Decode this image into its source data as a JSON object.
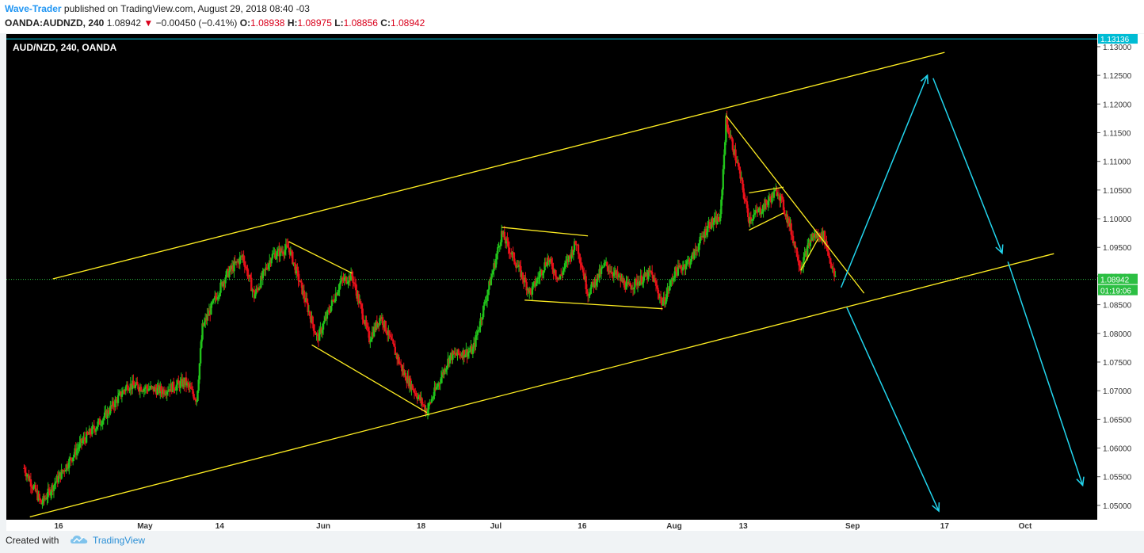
{
  "header": {
    "author": "Wave-Trader",
    "published_text": " published on TradingView.com, August 29, 2018 08:40 -03",
    "symbol": "OANDA:AUDNZD, 240",
    "last_price": "1.08942",
    "change_arrow": "▼",
    "change": "−0.00450 (−0.41%)",
    "open_label": "O:",
    "open": "1.08938",
    "high_label": "H:",
    "high": "1.08975",
    "low_label": "L:",
    "low": "1.08856",
    "close_label": "C:",
    "close": "1.08942"
  },
  "chart_data": {
    "type": "candlestick",
    "title": "AUD/NZD, 240, OANDA",
    "ylim": [
      1.0475,
      1.1322
    ],
    "y_ticks": [
      "1.13000",
      "1.12500",
      "1.12000",
      "1.11500",
      "1.11000",
      "1.10500",
      "1.10000",
      "1.09500",
      "1.09000",
      "1.08500",
      "1.08000",
      "1.07500",
      "1.07000",
      "1.06500",
      "1.06000",
      "1.05500",
      "1.05000"
    ],
    "x_ticks": [
      "16",
      "May",
      "14",
      "Jun",
      "18",
      "Jul",
      "16",
      "Aug",
      "13",
      "Sep",
      "17",
      "Oct"
    ],
    "price_badge_top": "1.13136",
    "price_badge_last": "1.08942",
    "countdown": "01:19:06",
    "current_price": 1.08942,
    "grid": false,
    "colors": {
      "up": "#21c21a",
      "down": "#e8101a",
      "trendline": "#ffee22",
      "projection": "#22d5ee",
      "current_price_line": "#2cbf43",
      "top_line": "#00bcd4"
    },
    "path_points": [
      {
        "date": "2018-04-10",
        "price": 1.0565
      },
      {
        "date": "2018-04-13",
        "price": 1.0503
      },
      {
        "date": "2018-04-20",
        "price": 1.061
      },
      {
        "date": "2018-04-24",
        "price": 1.0655
      },
      {
        "date": "2018-04-28",
        "price": 1.071
      },
      {
        "date": "2018-05-04",
        "price": 1.07
      },
      {
        "date": "2018-05-08",
        "price": 1.0715
      },
      {
        "date": "2018-05-10",
        "price": 1.0685
      },
      {
        "date": "2018-05-11",
        "price": 1.081
      },
      {
        "date": "2018-05-15",
        "price": 1.09
      },
      {
        "date": "2018-05-18",
        "price": 1.0935
      },
      {
        "date": "2018-05-20",
        "price": 1.0865
      },
      {
        "date": "2018-05-23",
        "price": 1.0935
      },
      {
        "date": "2018-05-26",
        "price": 1.095
      },
      {
        "date": "2018-05-31",
        "price": 1.079
      },
      {
        "date": "2018-06-04",
        "price": 1.089
      },
      {
        "date": "2018-06-06",
        "price": 1.09
      },
      {
        "date": "2018-06-09",
        "price": 1.079
      },
      {
        "date": "2018-06-11",
        "price": 1.083
      },
      {
        "date": "2018-06-15",
        "price": 1.073
      },
      {
        "date": "2018-06-19",
        "price": 1.0665
      },
      {
        "date": "2018-06-23",
        "price": 1.076
      },
      {
        "date": "2018-06-27",
        "price": 1.077
      },
      {
        "date": "2018-07-01",
        "price": 1.093
      },
      {
        "date": "2018-07-02",
        "price": 1.0975
      },
      {
        "date": "2018-07-07",
        "price": 1.087
      },
      {
        "date": "2018-07-10",
        "price": 1.093
      },
      {
        "date": "2018-07-12",
        "price": 1.0895
      },
      {
        "date": "2018-07-15",
        "price": 1.096
      },
      {
        "date": "2018-07-17",
        "price": 1.087
      },
      {
        "date": "2018-07-20",
        "price": 1.092
      },
      {
        "date": "2018-07-24",
        "price": 1.088
      },
      {
        "date": "2018-07-28",
        "price": 1.0905
      },
      {
        "date": "2018-07-30",
        "price": 1.085
      },
      {
        "date": "2018-08-01",
        "price": 1.0905
      },
      {
        "date": "2018-08-04",
        "price": 1.093
      },
      {
        "date": "2018-08-07",
        "price": 1.099
      },
      {
        "date": "2018-08-09",
        "price": 1.1
      },
      {
        "date": "2018-08-10",
        "price": 1.117
      },
      {
        "date": "2018-08-12",
        "price": 1.1095
      },
      {
        "date": "2018-08-14",
        "price": 1.1
      },
      {
        "date": "2018-08-16",
        "price": 1.1015
      },
      {
        "date": "2018-08-19",
        "price": 1.105
      },
      {
        "date": "2018-08-21",
        "price": 1.099
      },
      {
        "date": "2018-08-23",
        "price": 1.0915
      },
      {
        "date": "2018-08-25",
        "price": 1.097
      },
      {
        "date": "2018-08-27",
        "price": 1.097
      },
      {
        "date": "2018-08-29",
        "price": 1.0894
      }
    ],
    "drawings": {
      "channel_upper": [
        {
          "date": "2018-04-15",
          "price": 1.0895
        },
        {
          "date": "2018-09-17",
          "price": 1.129
        }
      ],
      "channel_lower": [
        {
          "date": "2018-04-11",
          "price": 1.048
        },
        {
          "date": "2018-10-06",
          "price": 1.0939
        }
      ],
      "lines": [
        [
          {
            "date": "2018-05-26",
            "price": 1.096
          },
          {
            "date": "2018-06-06",
            "price": 1.0905
          }
        ],
        [
          {
            "date": "2018-05-30",
            "price": 1.078
          },
          {
            "date": "2018-06-19",
            "price": 1.0662
          }
        ],
        [
          {
            "date": "2018-07-02",
            "price": 1.0985
          },
          {
            "date": "2018-07-17",
            "price": 1.097
          }
        ],
        [
          {
            "date": "2018-07-06",
            "price": 1.0858
          },
          {
            "date": "2018-07-30",
            "price": 1.0843
          }
        ],
        [
          {
            "date": "2018-08-10",
            "price": 1.118
          },
          {
            "date": "2018-09-03",
            "price": 1.087
          }
        ],
        [
          {
            "date": "2018-08-14",
            "price": 1.1045
          },
          {
            "date": "2018-08-20",
            "price": 1.1055
          }
        ],
        [
          {
            "date": "2018-08-14",
            "price": 1.098
          },
          {
            "date": "2018-08-20",
            "price": 1.101
          }
        ],
        [
          {
            "date": "2018-08-23",
            "price": 1.091
          },
          {
            "date": "2018-08-26",
            "price": 1.0965
          }
        ]
      ],
      "projections": [
        {
          "from": {
            "date": "2018-08-30",
            "price": 1.088
          },
          "to": {
            "date": "2018-09-14",
            "price": 1.125
          }
        },
        {
          "from": {
            "date": "2018-09-15",
            "price": 1.1245
          },
          "to": {
            "date": "2018-09-27",
            "price": 1.094
          }
        },
        {
          "from": {
            "date": "2018-08-31",
            "price": 1.0845
          },
          "to": {
            "date": "2018-09-16",
            "price": 1.049
          }
        },
        {
          "from": {
            "date": "2018-09-28",
            "price": 1.0925
          },
          "to": {
            "date": "2018-10-11",
            "price": 1.0535
          }
        }
      ]
    }
  },
  "footer": {
    "created_with": "Created with",
    "brand": "TradingView"
  }
}
